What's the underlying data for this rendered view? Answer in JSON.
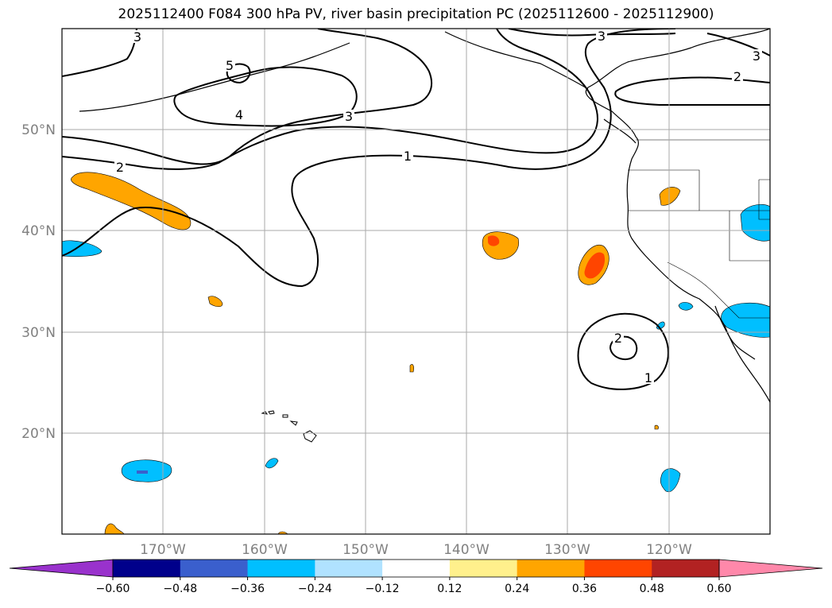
{
  "title": "2025112400 F084 300 hPa PV, river basin precipitation PC (2025112600 - 2025112900)",
  "lat_labels": [
    "50°N",
    "40°N",
    "30°N",
    "20°N"
  ],
  "lon_labels": [
    "170°W",
    "160°W",
    "150°W",
    "140°W",
    "130°W",
    "120°W"
  ],
  "pv_contour_labels": [
    "3",
    "5",
    "4",
    "3",
    "2",
    "1",
    "3",
    "3",
    "2",
    "1",
    "2"
  ],
  "colorbar": {
    "tick_labels": [
      "−0.60",
      "−0.48",
      "−0.36",
      "−0.24",
      "−0.12",
      "0.12",
      "0.24",
      "0.36",
      "0.48",
      "0.60"
    ],
    "colors": [
      "#9932cc",
      "#00008b",
      "#3a5fcd",
      "#00bfff",
      "#b0e2ff",
      "#ffffff",
      "#fff08c",
      "#ffa500",
      "#ff4500",
      "#b22222",
      "#ff88aa"
    ]
  }
}
